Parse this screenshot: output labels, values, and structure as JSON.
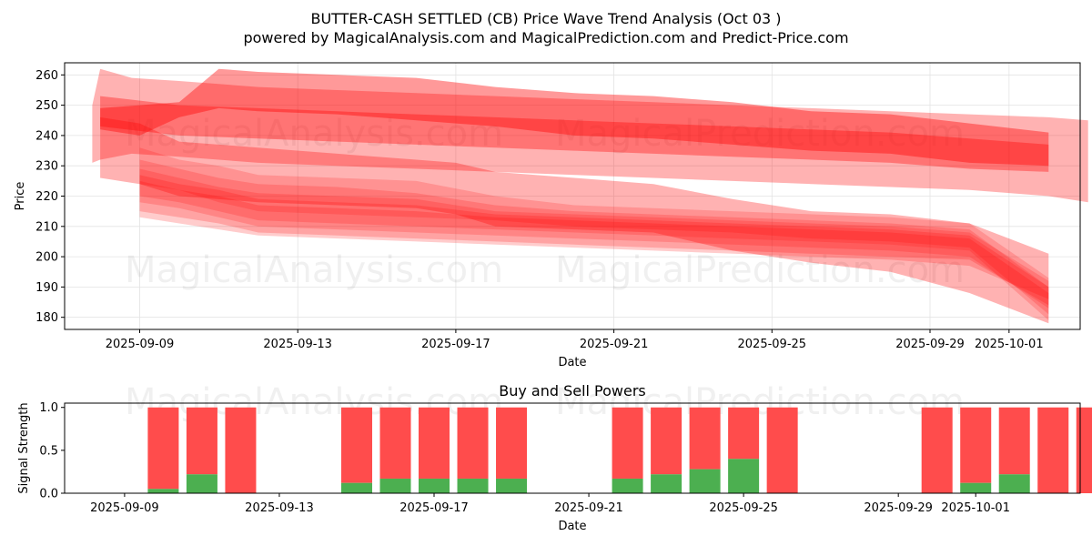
{
  "title": "BUTTER-CASH SETTLED (CB) Price Wave Trend Analysis (Oct 03 )",
  "subtitle": "powered by MagicalAnalysis.com and MagicalPrediction.com and Predict-Price.com",
  "watermarks": [
    "MagicalAnalysis.com",
    "MagicalPrediction.com"
  ],
  "chart_data": [
    {
      "type": "area",
      "title": "",
      "xlabel": "Date",
      "ylabel": "Price",
      "x_start": "2025-09-08",
      "x_range_days": [
        -0.9,
        24.8
      ],
      "ylim": [
        176,
        264
      ],
      "yticks": [
        180,
        190,
        200,
        210,
        220,
        230,
        240,
        250,
        260
      ],
      "xticks": [
        {
          "day": 1,
          "label": "2025-09-09"
        },
        {
          "day": 5,
          "label": "2025-09-13"
        },
        {
          "day": 9,
          "label": "2025-09-17"
        },
        {
          "day": 13,
          "label": "2025-09-21"
        },
        {
          "day": 17,
          "label": "2025-09-25"
        },
        {
          "day": 21,
          "label": "2025-09-29"
        },
        {
          "day": 23,
          "label": "2025-10-01"
        }
      ],
      "grid": true,
      "color": "#ff0000",
      "bands": [
        {
          "name": "upper-wide",
          "opacity": 0.3,
          "x": [
            -0.2,
            0,
            0.8,
            2,
            3,
            4,
            6,
            8,
            10,
            12,
            14,
            16,
            18,
            20,
            22,
            24,
            25
          ],
          "upper": [
            250,
            262,
            259,
            258,
            257,
            256,
            255,
            254,
            253,
            252,
            251,
            250,
            249,
            248,
            247,
            246,
            245
          ],
          "lower": [
            231,
            232,
            234,
            233,
            232,
            231,
            230,
            229,
            228,
            227,
            226,
            225,
            224,
            223,
            222,
            220,
            218
          ]
        },
        {
          "name": "upper-mid",
          "opacity": 0.4,
          "x": [
            0,
            1,
            2,
            3,
            4,
            6,
            8,
            10,
            12,
            14,
            16,
            18,
            20,
            22,
            24
          ],
          "upper": [
            249,
            250,
            251,
            262,
            261,
            260,
            259,
            256,
            254,
            253,
            251,
            248,
            247,
            244,
            241
          ],
          "lower": [
            242,
            240,
            246,
            249,
            248,
            247,
            245,
            243,
            240,
            239,
            237,
            235,
            234,
            231,
            230
          ]
        },
        {
          "name": "upper-core",
          "opacity": 0.35,
          "x": [
            0,
            2,
            4,
            6,
            8,
            10,
            12,
            14,
            16,
            18,
            20,
            22,
            24
          ],
          "upper": [
            253,
            250,
            249,
            248,
            247,
            246,
            245,
            244,
            243,
            242,
            241,
            239,
            237
          ],
          "lower": [
            243,
            240,
            239,
            238,
            237,
            236,
            235,
            234,
            233,
            232,
            231,
            229,
            228
          ]
        },
        {
          "name": "lower-wide",
          "opacity": 0.3,
          "x": [
            0,
            1,
            2,
            4,
            6,
            8,
            9,
            10,
            12,
            14,
            16,
            18,
            20,
            22,
            24
          ],
          "upper": [
            246,
            244,
            238,
            236,
            234,
            232,
            231,
            228,
            226,
            224,
            219,
            215,
            214,
            211,
            201
          ],
          "lower": [
            226,
            224,
            220,
            218,
            217,
            216,
            214,
            210,
            209,
            208,
            202,
            198,
            195,
            188,
            178
          ]
        },
        {
          "name": "lower-a",
          "opacity": 0.18,
          "x": [
            1,
            2,
            3,
            4,
            6,
            8,
            10,
            12,
            14,
            16,
            18,
            20,
            22,
            24
          ],
          "upper": [
            236,
            232,
            230,
            227,
            226,
            225,
            220,
            217,
            216,
            215,
            214,
            213,
            211,
            193
          ],
          "lower": [
            224,
            222,
            218,
            215,
            214,
            213,
            212,
            210,
            209,
            208,
            206,
            205,
            203,
            181
          ]
        },
        {
          "name": "lower-b",
          "opacity": 0.18,
          "x": [
            1,
            2,
            3,
            4,
            6,
            8,
            10,
            12,
            14,
            16,
            18,
            20,
            22,
            24
          ],
          "upper": [
            232,
            229,
            226,
            224,
            223,
            221,
            217,
            215,
            214,
            213,
            212,
            211,
            209,
            190
          ],
          "lower": [
            220,
            218,
            215,
            212,
            211,
            210,
            209,
            208,
            207,
            206,
            205,
            204,
            202,
            179
          ]
        },
        {
          "name": "lower-c",
          "opacity": 0.18,
          "x": [
            1,
            2,
            3,
            4,
            6,
            8,
            10,
            12,
            14,
            16,
            18,
            20,
            22,
            24
          ],
          "upper": [
            229,
            226,
            223,
            221,
            220,
            219,
            215,
            214,
            213,
            212,
            211,
            210,
            208,
            192
          ],
          "lower": [
            218,
            216,
            213,
            210,
            209,
            208,
            207,
            206,
            205,
            204,
            203,
            202,
            200,
            183
          ]
        },
        {
          "name": "lower-d",
          "opacity": 0.2,
          "x": [
            1,
            2,
            3,
            4,
            6,
            8,
            10,
            12,
            14,
            16,
            18,
            20,
            22,
            24
          ],
          "upper": [
            227,
            224,
            222,
            219,
            218,
            217,
            214,
            213,
            212,
            211,
            210,
            209,
            207,
            190
          ],
          "lower": [
            215,
            213,
            211,
            208,
            207,
            206,
            205,
            204,
            203,
            202,
            201,
            200,
            199,
            184
          ]
        },
        {
          "name": "lower-e",
          "opacity": 0.2,
          "x": [
            1,
            2,
            3,
            4,
            6,
            8,
            10,
            12,
            14,
            16,
            18,
            20,
            22,
            24
          ],
          "upper": [
            225,
            222,
            220,
            217,
            216,
            215,
            213,
            212,
            211,
            210,
            209,
            208,
            206,
            188
          ],
          "lower": [
            213,
            211,
            209,
            207,
            206,
            205,
            204,
            203,
            202,
            201,
            200,
            199,
            197,
            186
          ]
        }
      ]
    },
    {
      "type": "bar",
      "title": "Buy and Sell Powers",
      "xlabel": "Date",
      "ylabel": "Signal Strength",
      "ylim": [
        0,
        1.05
      ],
      "yticks": [
        0.0,
        0.5,
        1.0
      ],
      "xticks": [
        {
          "day": 1,
          "label": "2025-09-09"
        },
        {
          "day": 5,
          "label": "2025-09-13"
        },
        {
          "day": 9,
          "label": "2025-09-17"
        },
        {
          "day": 13,
          "label": "2025-09-21"
        },
        {
          "day": 17,
          "label": "2025-09-25"
        },
        {
          "day": 21,
          "label": "2025-09-29"
        },
        {
          "day": 23,
          "label": "2025-10-01"
        }
      ],
      "buy_color": "#4caf50",
      "sell_color": "#ff4c4c",
      "series": [
        {
          "name": "Buy",
          "days": [
            2,
            3,
            4,
            7,
            8,
            9,
            10,
            11,
            14,
            15,
            16,
            17,
            18,
            22,
            23,
            24,
            25,
            26
          ],
          "values": [
            0.05,
            0.22,
            0.0,
            0.12,
            0.17,
            0.17,
            0.17,
            0.17,
            0.17,
            0.22,
            0.28,
            0.4,
            0.0,
            0.0,
            0.12,
            0.22,
            0.0,
            0.0
          ]
        },
        {
          "name": "Sell",
          "days": [
            2,
            3,
            4,
            7,
            8,
            9,
            10,
            11,
            14,
            15,
            16,
            17,
            18,
            22,
            23,
            24,
            25,
            26
          ],
          "values": [
            0.95,
            0.78,
            1.0,
            0.88,
            0.83,
            0.83,
            0.83,
            0.83,
            0.83,
            0.78,
            0.72,
            0.6,
            1.0,
            1.0,
            0.88,
            0.78,
            1.0,
            1.0
          ]
        }
      ]
    }
  ]
}
